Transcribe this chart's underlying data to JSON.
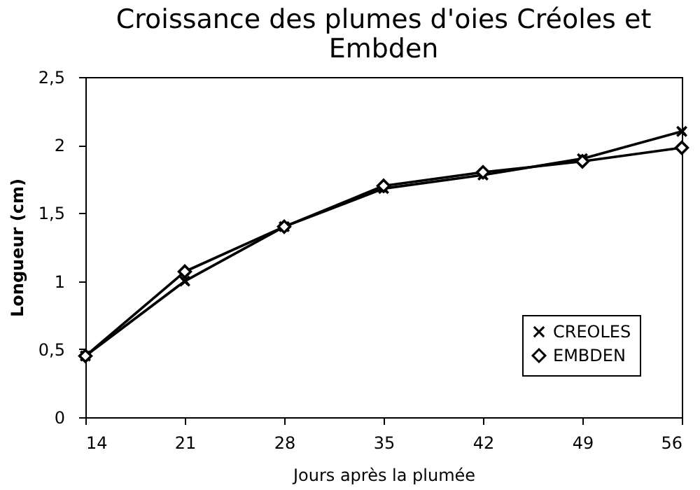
{
  "chart_data": {
    "type": "line",
    "title": "Croissance des plumes d'oies Créoles et Embden",
    "xlabel": "Jours après la plumée",
    "ylabel": "Longueur (cm)",
    "x": [
      14,
      21,
      28,
      35,
      42,
      49,
      56
    ],
    "series": [
      {
        "name": "CREOLES",
        "color": "#000000",
        "marker": "cross",
        "values": [
          0.45,
          1.0,
          1.4,
          1.68,
          1.78,
          1.9,
          2.1
        ]
      },
      {
        "name": "EMBDEN",
        "color": "#000000",
        "marker": "diamond",
        "values": [
          0.45,
          1.07,
          1.4,
          1.7,
          1.8,
          1.88,
          1.98
        ]
      }
    ],
    "xlim": [
      14,
      56
    ],
    "xticks": [
      14,
      21,
      28,
      35,
      42,
      49,
      56
    ],
    "ylim": [
      0,
      2.5
    ],
    "yticks": [
      0,
      {
        "value": 0.5,
        "label": "0,5"
      },
      1,
      {
        "value": 1.5,
        "label": "1,5"
      },
      2,
      {
        "value": 2.5,
        "label": "2,5"
      }
    ],
    "grid": false,
    "legend": "bottom right",
    "line_style": "solid"
  }
}
